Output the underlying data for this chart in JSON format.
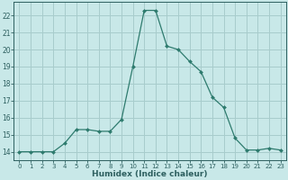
{
  "x": [
    0,
    1,
    2,
    3,
    4,
    5,
    6,
    7,
    8,
    9,
    10,
    11,
    12,
    13,
    14,
    15,
    16,
    17,
    18,
    19,
    20,
    21,
    22,
    23
  ],
  "y": [
    14,
    14,
    14,
    14,
    14.5,
    15.3,
    15.3,
    15.2,
    15.2,
    15.9,
    19.0,
    22.3,
    22.3,
    20.2,
    20.0,
    19.3,
    18.7,
    17.2,
    16.6,
    14.8,
    14.1,
    14.1,
    14.2,
    14.1
  ],
  "line_color": "#2e7b6e",
  "marker": "D",
  "marker_size": 2.0,
  "bg_color": "#c8e8e8",
  "grid_color": "#a8cccc",
  "xlabel": "Humidex (Indice chaleur)",
  "ylabel_ticks": [
    14,
    15,
    16,
    17,
    18,
    19,
    20,
    21,
    22
  ],
  "xlim": [
    -0.5,
    23.5
  ],
  "ylim": [
    13.5,
    22.8
  ],
  "xticks": [
    0,
    1,
    2,
    3,
    4,
    5,
    6,
    7,
    8,
    9,
    10,
    11,
    12,
    13,
    14,
    15,
    16,
    17,
    18,
    19,
    20,
    21,
    22,
    23
  ],
  "font_color": "#2e6060",
  "xtick_fontsize": 5.0,
  "ytick_fontsize": 5.5,
  "xlabel_fontsize": 6.5
}
